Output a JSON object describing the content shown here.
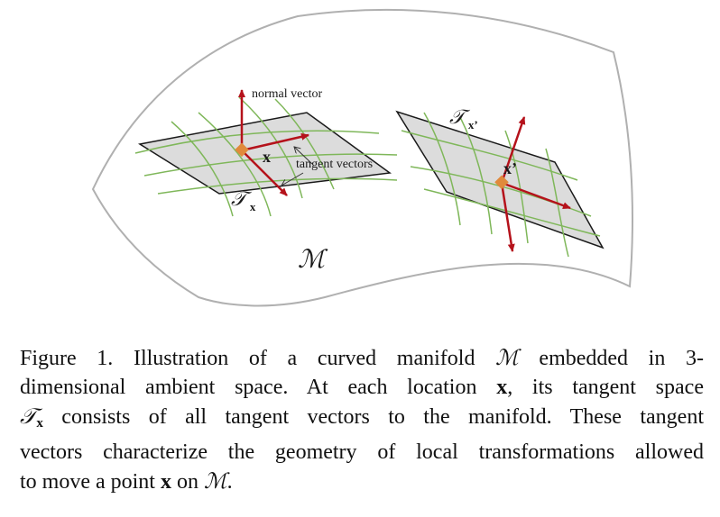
{
  "diagram": {
    "manifold_symbol": "ℳ",
    "tangent_space_symbol": "𝒯",
    "point_label": "x",
    "point_label_prime": "x’",
    "subscript_x": "x",
    "subscript_x_prime": "x’",
    "normal_vector_label": "normal vector",
    "tangent_vectors_label": "tangent vectors",
    "colors": {
      "manifold_outline": "#b0b0b0",
      "plane_fill": "#dcdcdc",
      "plane_edge": "#1a1a1a",
      "grid_lines": "#7fb75a",
      "vectors": "#b5121b",
      "point": "#e08a3c"
    }
  },
  "caption": {
    "l1_a": "Figure 1. Illustration of a curved manifold ",
    "l1_m": "ℳ",
    "l1_b": " embedded in 3-",
    "l2_a": "dimensional ambient space.  At each location ",
    "l2_x": "x",
    "l2_b": ", its tangent space",
    "l3_t": "𝒯",
    "l3_sub": "x",
    "l3_b": " consists of all tangent vectors to the manifold.  These tangent",
    "l4": "vectors characterize the geometry of local transformations allowed",
    "l5_a": "to move a point ",
    "l5_x": "x",
    "l5_b": " on ",
    "l5_m": "ℳ",
    "l5_c": "."
  }
}
